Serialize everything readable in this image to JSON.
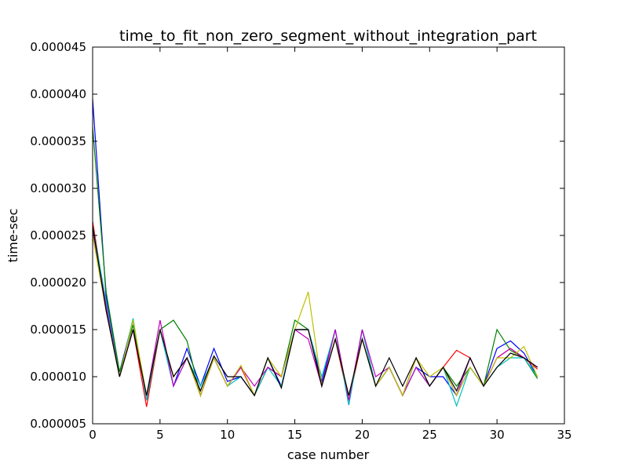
{
  "chart_data": {
    "type": "line",
    "title": "time_to_fit_non_zero_segment_without_integration_part",
    "xlabel": "case number",
    "ylabel": "time-sec",
    "xlim": [
      0,
      35
    ],
    "ylim": [
      5e-06,
      4.5e-05
    ],
    "xticks": [
      0,
      5,
      10,
      15,
      20,
      25,
      30,
      35
    ],
    "xtick_labels": [
      "0",
      "5",
      "10",
      "15",
      "20",
      "25",
      "30",
      "35"
    ],
    "yticks": [
      5e-06,
      1e-05,
      1.5e-05,
      2e-05,
      2.5e-05,
      3e-05,
      3.5e-05,
      4e-05,
      4.5e-05
    ],
    "ytick_labels": [
      "0.000005",
      "0.000010",
      "0.000015",
      "0.000020",
      "0.000025",
      "0.000030",
      "0.000035",
      "0.000040",
      "0.000045"
    ],
    "grid": false,
    "x": [
      0,
      1,
      2,
      3,
      4,
      5,
      6,
      7,
      8,
      9,
      10,
      11,
      12,
      13,
      14,
      15,
      16,
      17,
      18,
      19,
      20,
      21,
      22,
      23,
      24,
      25,
      26,
      27,
      28,
      29,
      30,
      31,
      32,
      33
    ],
    "series": [
      {
        "color": "#0000ff",
        "values": [
          3.95e-05,
          1.85e-05,
          1.05e-05,
          1.6e-05,
          7.5e-06,
          1.5e-05,
          9e-06,
          1.3e-05,
          9e-06,
          1.3e-05,
          9.5e-06,
          1e-05,
          8e-06,
          1.2e-05,
          9e-06,
          1.5e-05,
          1.5e-05,
          9.5e-06,
          1.5e-05,
          7e-06,
          1.5e-05,
          9e-06,
          1.1e-05,
          8e-06,
          1.1e-05,
          1e-05,
          1e-05,
          8e-06,
          1.1e-05,
          9e-06,
          1.3e-05,
          1.38e-05,
          1.25e-05,
          1e-05
        ]
      },
      {
        "color": "#008000",
        "values": [
          3.65e-05,
          1.9e-05,
          1.05e-05,
          1.55e-05,
          8e-06,
          1.5e-05,
          1.6e-05,
          1.38e-05,
          8e-06,
          1.2e-05,
          9e-06,
          1.1e-05,
          8e-06,
          1.1e-05,
          1e-05,
          1.6e-05,
          1.5e-05,
          9e-06,
          1.4e-05,
          7.5e-06,
          1.4e-05,
          9e-06,
          1.1e-05,
          8e-06,
          1.2e-05,
          9e-06,
          1.1e-05,
          9e-06,
          1.1e-05,
          9e-06,
          1.5e-05,
          1.28e-05,
          1.2e-05,
          9.8e-06
        ]
      },
      {
        "color": "#ff0000",
        "values": [
          2.65e-05,
          1.75e-05,
          1e-05,
          1.5e-05,
          6.8e-06,
          1.5e-05,
          1e-05,
          1.2e-05,
          8e-06,
          1.2e-05,
          9e-06,
          1.1e-05,
          8e-06,
          1.1e-05,
          1e-05,
          1.5e-05,
          1.5e-05,
          9e-06,
          1.4e-05,
          7.5e-06,
          1.4e-05,
          9e-06,
          1.1e-05,
          8e-06,
          1.2e-05,
          9e-06,
          1.1e-05,
          1.28e-05,
          1.2e-05,
          9e-06,
          1.2e-05,
          1.3e-05,
          1.2e-05,
          1.08e-05
        ]
      },
      {
        "color": "#00bfbf",
        "values": [
          2.6e-05,
          1.8e-05,
          1e-05,
          1.62e-05,
          7.5e-06,
          1.5e-05,
          9e-06,
          1.2e-05,
          9e-06,
          1.2e-05,
          9e-06,
          1e-05,
          8e-06,
          1.1e-05,
          9e-06,
          1.5e-05,
          1.5e-05,
          1e-05,
          1.5e-05,
          7e-06,
          1.5e-05,
          9e-06,
          1.1e-05,
          8e-06,
          1.1e-05,
          9e-06,
          1.1e-05,
          6.9e-06,
          1.1e-05,
          9e-06,
          1.1e-05,
          1.2e-05,
          1.2e-05,
          1e-05
        ]
      },
      {
        "color": "#bf00bf",
        "values": [
          2.55e-05,
          1.75e-05,
          1e-05,
          1.5e-05,
          8e-06,
          1.6e-05,
          9e-06,
          1.2e-05,
          8e-06,
          1.2e-05,
          9e-06,
          1.1e-05,
          9e-06,
          1.1e-05,
          1e-05,
          1.5e-05,
          1.4e-05,
          9e-06,
          1.5e-05,
          7.5e-06,
          1.5e-05,
          1e-05,
          1.1e-05,
          8e-06,
          1.1e-05,
          9e-06,
          1.1e-05,
          8e-06,
          1.2e-05,
          9e-06,
          1.2e-05,
          1.3e-05,
          1.2e-05,
          1.1e-05
        ]
      },
      {
        "color": "#bfbf00",
        "values": [
          2.5e-05,
          1.7e-05,
          1e-05,
          1.6e-05,
          8e-06,
          1.5e-05,
          1e-05,
          1.2e-05,
          8e-06,
          1.2e-05,
          9e-06,
          1.12e-05,
          8e-06,
          1.2e-05,
          1e-05,
          1.5e-05,
          1.9e-05,
          9e-06,
          1.4e-05,
          8e-06,
          1.4e-05,
          9e-06,
          1.1e-05,
          8e-06,
          1.2e-05,
          1e-05,
          1.1e-05,
          8e-06,
          1.1e-05,
          9e-06,
          1.2e-05,
          1.2e-05,
          1.32e-05,
          1e-05
        ]
      },
      {
        "color": "#000000",
        "values": [
          2.6e-05,
          1.7e-05,
          1e-05,
          1.5e-05,
          8e-06,
          1.5e-05,
          1e-05,
          1.2e-05,
          8.5e-06,
          1.22e-05,
          1e-05,
          1e-05,
          8e-06,
          1.2e-05,
          8.8e-06,
          1.5e-05,
          1.5e-05,
          9e-06,
          1.4e-05,
          8e-06,
          1.4e-05,
          9e-06,
          1.2e-05,
          9e-06,
          1.2e-05,
          9e-06,
          1.1e-05,
          8.5e-06,
          1.2e-05,
          9e-06,
          1.1e-05,
          1.25e-05,
          1.2e-05,
          1.1e-05
        ]
      }
    ]
  }
}
